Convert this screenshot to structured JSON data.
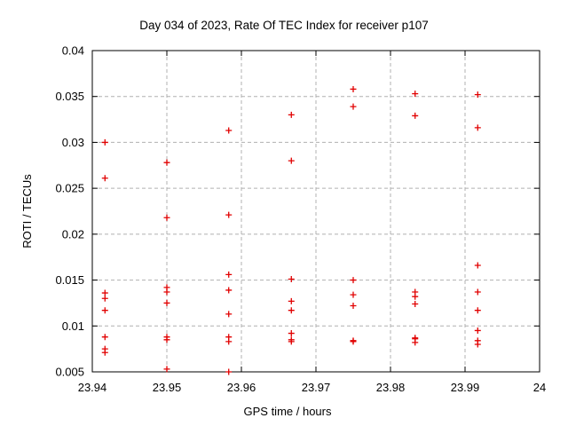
{
  "chart_data": {
    "type": "scatter",
    "title": "Day 034 of 2023, Rate Of TEC Index for receiver p107",
    "xlabel": "GPS time / hours",
    "ylabel": "ROTI / TECUs",
    "xlim": [
      23.94,
      24
    ],
    "ylim": [
      0.005,
      0.04
    ],
    "xtick_labels": [
      "23.94",
      "23.95",
      "23.96",
      "23.97",
      "23.98",
      "23.99",
      "24"
    ],
    "ytick_labels": [
      "0.005",
      "0.01",
      "0.015",
      "0.02",
      "0.025",
      "0.03",
      "0.035",
      "0.04"
    ],
    "grid": true,
    "legend": "none",
    "marker": "plus",
    "marker_color": "#e10000",
    "grid_color": "#b0b0b0",
    "axis_color": "#000000",
    "series": [
      {
        "name": "ROTI",
        "points": [
          [
            23.9417,
            0.03
          ],
          [
            23.9417,
            0.0261
          ],
          [
            23.9417,
            0.0136
          ],
          [
            23.9417,
            0.013
          ],
          [
            23.9417,
            0.0117
          ],
          [
            23.9417,
            0.0088
          ],
          [
            23.9417,
            0.0075
          ],
          [
            23.9417,
            0.0071
          ],
          [
            23.95,
            0.0278
          ],
          [
            23.95,
            0.0218
          ],
          [
            23.95,
            0.0142
          ],
          [
            23.95,
            0.0137
          ],
          [
            23.95,
            0.0125
          ],
          [
            23.95,
            0.0088
          ],
          [
            23.95,
            0.0085
          ],
          [
            23.95,
            0.0053
          ],
          [
            23.9583,
            0.0313
          ],
          [
            23.9583,
            0.0221
          ],
          [
            23.9583,
            0.0156
          ],
          [
            23.9583,
            0.0139
          ],
          [
            23.9583,
            0.0113
          ],
          [
            23.9583,
            0.0088
          ],
          [
            23.9583,
            0.0083
          ],
          [
            23.9583,
            0.005
          ],
          [
            23.9667,
            0.033
          ],
          [
            23.9667,
            0.028
          ],
          [
            23.9667,
            0.0151
          ],
          [
            23.9667,
            0.0127
          ],
          [
            23.9667,
            0.0117
          ],
          [
            23.9667,
            0.0092
          ],
          [
            23.9667,
            0.0085
          ],
          [
            23.9667,
            0.0083
          ],
          [
            23.975,
            0.0358
          ],
          [
            23.975,
            0.0339
          ],
          [
            23.975,
            0.015
          ],
          [
            23.975,
            0.0134
          ],
          [
            23.975,
            0.0122
          ],
          [
            23.975,
            0.0084
          ],
          [
            23.975,
            0.0083
          ],
          [
            23.9833,
            0.0353
          ],
          [
            23.9833,
            0.0329
          ],
          [
            23.9833,
            0.0137
          ],
          [
            23.9833,
            0.0132
          ],
          [
            23.9833,
            0.0124
          ],
          [
            23.9833,
            0.0087
          ],
          [
            23.9833,
            0.0086
          ],
          [
            23.9833,
            0.0082
          ],
          [
            23.9917,
            0.0352
          ],
          [
            23.9917,
            0.0316
          ],
          [
            23.9917,
            0.0166
          ],
          [
            23.9917,
            0.0137
          ],
          [
            23.9917,
            0.0117
          ],
          [
            23.9917,
            0.0095
          ],
          [
            23.9917,
            0.0084
          ],
          [
            23.9917,
            0.008
          ]
        ]
      }
    ]
  }
}
